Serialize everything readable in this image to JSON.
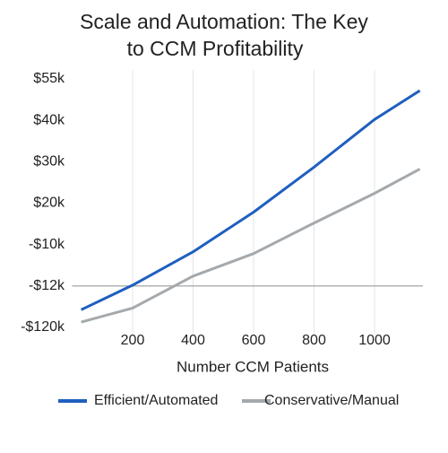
{
  "chart_data": {
    "type": "line",
    "title_lines": [
      "Scale and Automation: The Key",
      "to CCM Profitability"
    ],
    "x_label": "Number CCM Patients",
    "x": [
      30,
      200,
      400,
      600,
      800,
      1000,
      1150
    ],
    "series": [
      {
        "name": "Efficient/Automated",
        "color": "#1f5fbf",
        "values": [
          -74000,
          -11960,
          -10350,
          13480,
          28700,
          40330,
          50760
        ]
      },
      {
        "name": "Conservative/Manual",
        "color": "#a4a9ad",
        "values": [
          -106200,
          -69450,
          -11520,
          -10435,
          5650,
          22390,
          28260
        ]
      }
    ],
    "xlim": [
      0,
      1160
    ],
    "xticks": [
      200,
      400,
      600,
      800,
      1000
    ],
    "ylim": [
      -120000,
      55000
    ],
    "yticks": [
      {
        "value": -120000,
        "label": "-$120k"
      },
      {
        "value": -12000,
        "label": "-$12k"
      },
      {
        "value": -10000,
        "label": "-$10k"
      },
      {
        "value": 20000,
        "label": "$20k"
      },
      {
        "value": 30000,
        "label": "$30k"
      },
      {
        "value": 40000,
        "label": "$40k"
      },
      {
        "value": 55000,
        "label": "$55k"
      }
    ],
    "axhline": -12000,
    "grid": true,
    "legend": "bottom"
  }
}
